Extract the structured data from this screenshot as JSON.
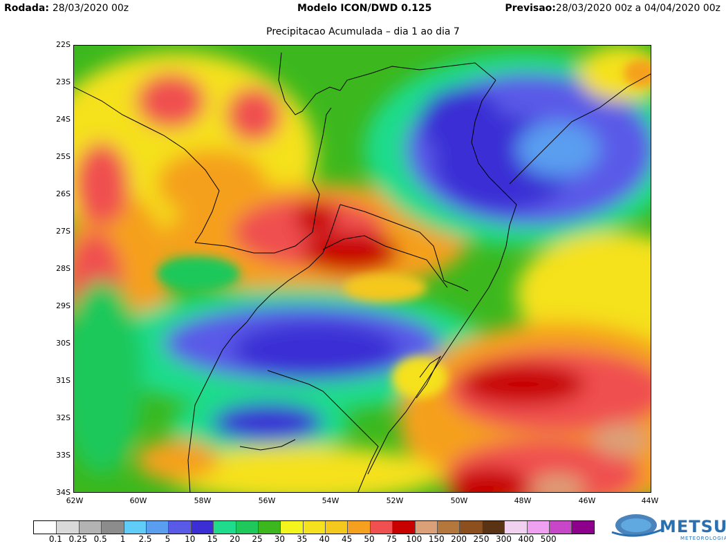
{
  "header": {
    "run_label": "Rodada:",
    "run_value": "28/03/2020 00z",
    "model": "Modelo ICON/DWD 0.125",
    "forecast_label": "Previsao:",
    "forecast_value": "28/03/2020 00z a 04/04/2020 00z"
  },
  "subtitle": "Precipitacao Acumulada – dia 1 ao dia 7",
  "lat_labels": [
    "22S",
    "23S",
    "24S",
    "25S",
    "26S",
    "27S",
    "28S",
    "29S",
    "30S",
    "31S",
    "32S",
    "33S",
    "34S"
  ],
  "lon_labels": [
    "62W",
    "60W",
    "58W",
    "56W",
    "54W",
    "52W",
    "50W",
    "48W",
    "46W",
    "44W"
  ],
  "legend": {
    "labels": [
      "0.1",
      "0.25",
      "0.5",
      "1",
      "2.5",
      "5",
      "10",
      "15",
      "20",
      "25",
      "30",
      "35",
      "40",
      "45",
      "50",
      "75",
      "100",
      "150",
      "200",
      "250",
      "300",
      "400",
      "500"
    ],
    "colors": [
      "#ffffff",
      "#d9d9d9",
      "#b3b3b3",
      "#8c8c8c",
      "#5fcdf7",
      "#5a9ef0",
      "#5a5ae8",
      "#3a2ed4",
      "#1edc8c",
      "#1ec85a",
      "#3cb81e",
      "#f5f51e",
      "#f5e11e",
      "#f5c81e",
      "#f5a01e",
      "#f05050",
      "#c80000",
      "#dca078",
      "#b4783c",
      "#8c501e",
      "#5a3214",
      "#f0d2f0",
      "#f0a0f0",
      "#c846c8",
      "#8c008c"
    ]
  },
  "logo": {
    "name": "METSUL",
    "tagline": "METEOROLOGIA"
  }
}
